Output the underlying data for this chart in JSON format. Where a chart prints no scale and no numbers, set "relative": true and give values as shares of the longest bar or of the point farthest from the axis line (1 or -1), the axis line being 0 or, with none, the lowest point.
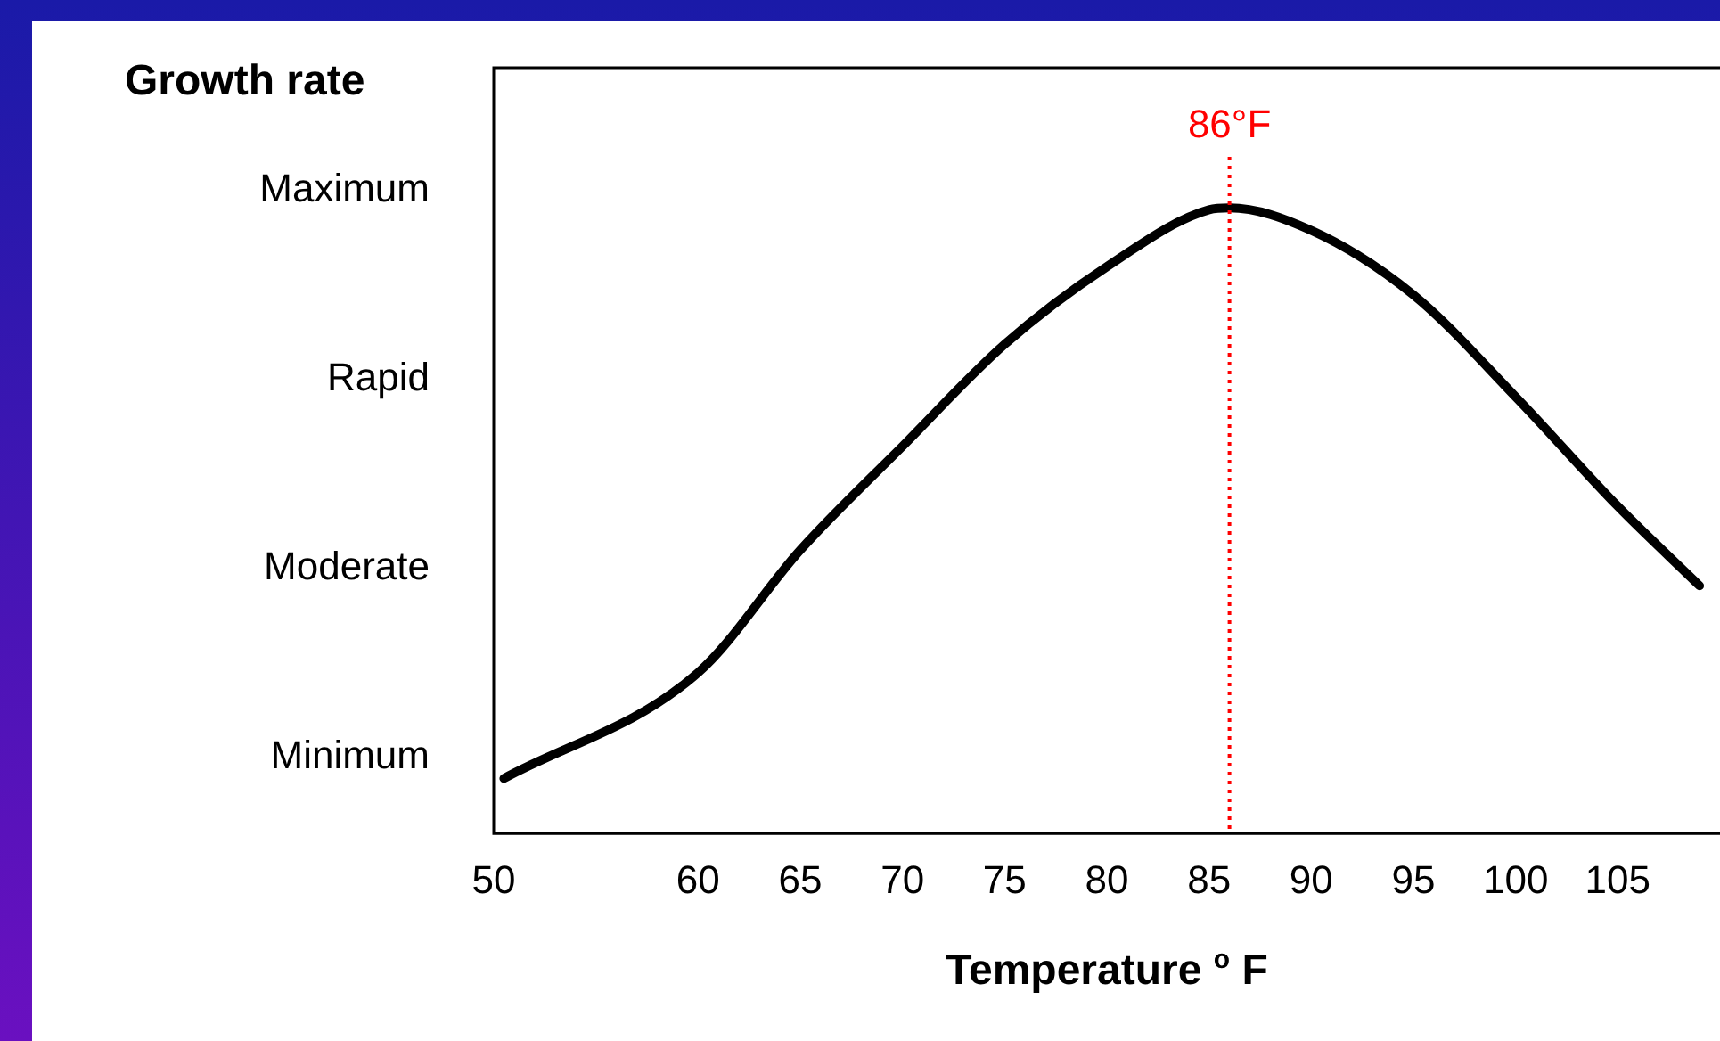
{
  "chart_data": {
    "type": "line",
    "xlabel": "Temperature $^{o}$ F",
    "ylabel": "Growth rate",
    "marker": "none",
    "x": [
      50.5,
      60,
      65,
      70,
      75,
      80,
      85,
      86,
      90,
      95,
      100,
      105,
      109
    ],
    "series": [
      {
        "color": "#000000",
        "values": [
          0.088,
          0.257,
          0.453,
          0.619,
          0.782,
          0.906,
          0.997,
          1,
          0.964,
          0.861,
          0.698,
          0.523,
          0.396
        ]
      }
    ],
    "relative": true,
    "annotations": [
      "Minimum",
      "Moderate",
      "Rapid",
      "Maximum"
    ],
    "xlim": [
      50,
      110
    ],
    "xticks": [
      50,
      60,
      65,
      70,
      75,
      80,
      85,
      90,
      95,
      100,
      105
    ],
    "ref_lines": [
      {
        "axis": "x",
        "value": 86,
        "label": "86°F",
        "color": "#ff0000",
        "line_style": "dotted"
      }
    ]
  }
}
